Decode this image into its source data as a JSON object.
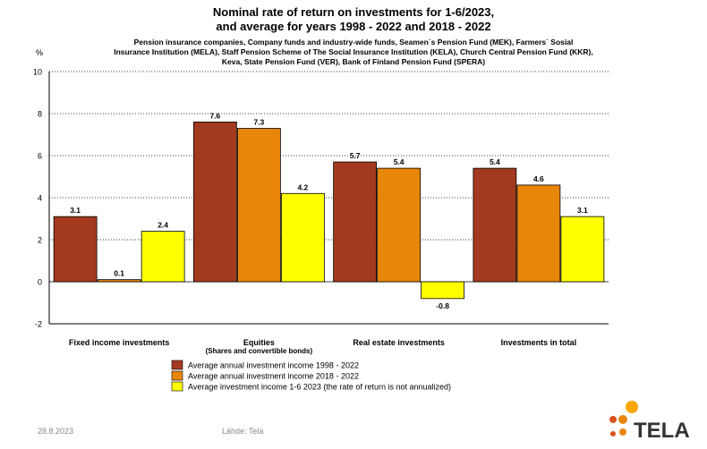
{
  "chart_data": {
    "type": "bar",
    "title_line1": "Nominal rate of return on investments for 1-6/2023,",
    "title_line2": "and average for years 1998 - 2022 and 2018 - 2022",
    "subtitle_lines": [
      "Pension insurance companies, Company funds and industry-wide funds, Seamen´s Pension Fund (MEK), Farmers´ Sosial",
      "Insurance Institution (MELA),  Staff Pension Scheme of The Social Insurance Institution (KELA), Church Central Pension Fund (KKR),",
      "Keva, State Pension Fund (VER), Bank of Finland Pension Fund (SPERA)"
    ],
    "ylabel": "%",
    "ylim": [
      -2,
      10
    ],
    "yticks": [
      -2,
      0,
      2,
      4,
      6,
      8,
      10
    ],
    "categories": [
      "Fixed income investments",
      "Equities",
      "Real estate investments",
      "Investments  in total"
    ],
    "category_sublabels": [
      "",
      "(Shares and convertible bonds)",
      "",
      ""
    ],
    "series": [
      {
        "name": "Average annual investment income 1998 - 2022",
        "color": "#A33A1F",
        "values": [
          3.1,
          7.6,
          5.7,
          5.4
        ]
      },
      {
        "name": "Average annual investment income 2018 - 2022",
        "color": "#E8860A",
        "values": [
          0.1,
          7.3,
          5.4,
          4.6
        ]
      },
      {
        "name": "Average investment income 1-6 2023 (the rate of return is not annualized)",
        "color": "#FFFF00",
        "values": [
          2.4,
          4.2,
          -0.8,
          3.1
        ]
      }
    ],
    "grid": true,
    "legend_position": "bottom"
  },
  "footer": {
    "date": "28.8.2023",
    "source": "Lähde: Tela"
  },
  "logo": {
    "text": "TELA",
    "colors": [
      "#F7A600",
      "#E8860A",
      "#D9531E"
    ]
  }
}
